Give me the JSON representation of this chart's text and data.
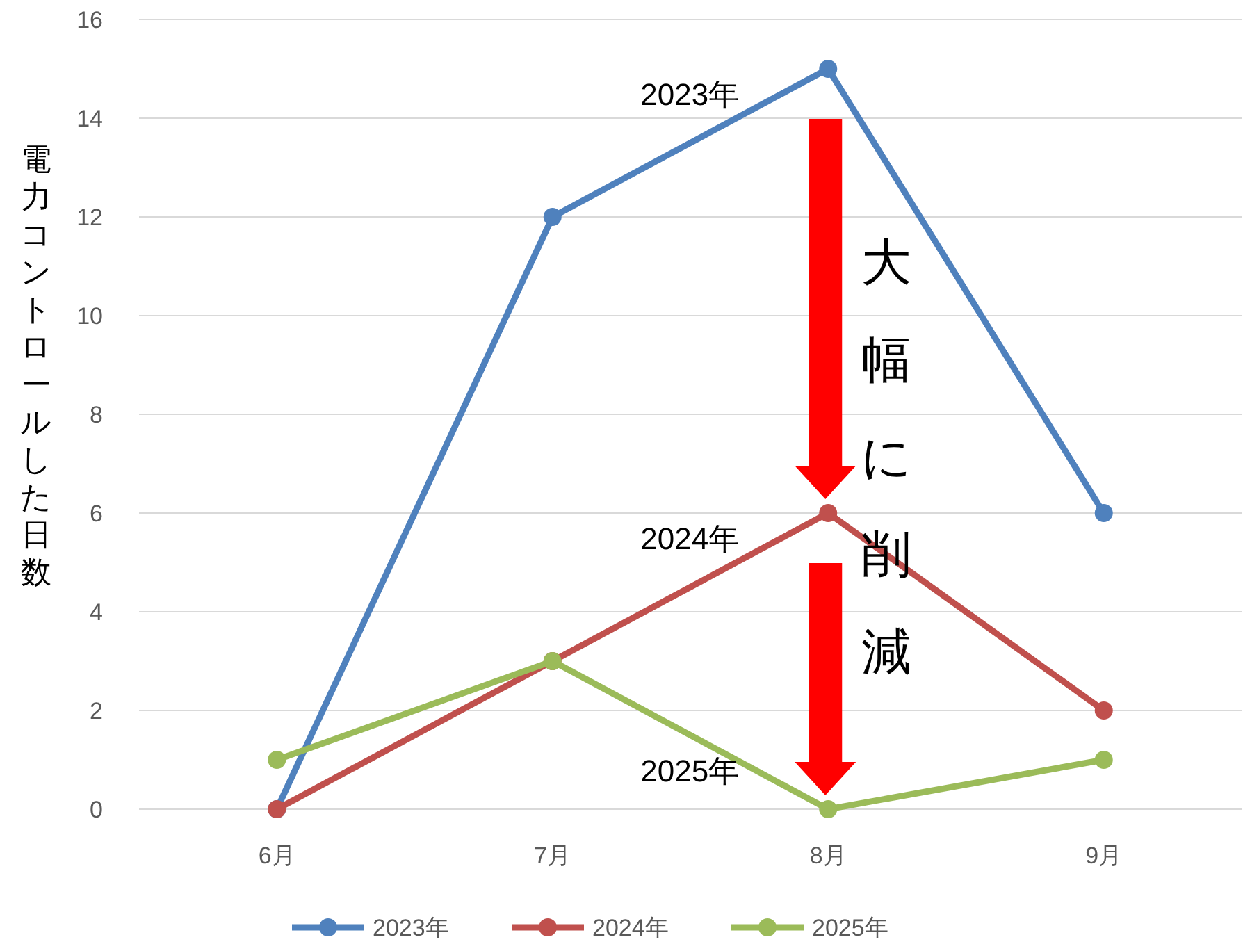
{
  "chart_data": {
    "type": "line",
    "ylabel": "電力コントロールした日数",
    "categories": [
      "6月",
      "7月",
      "8月",
      "9月"
    ],
    "series": [
      {
        "name": "2023年",
        "color": "#4f81bd",
        "values": [
          0,
          12,
          15,
          6
        ]
      },
      {
        "name": "2024年",
        "color": "#c0504d",
        "values": [
          0,
          3,
          6,
          2
        ]
      },
      {
        "name": "2025年",
        "color": "#9bbb59",
        "values": [
          1,
          3,
          0,
          1
        ]
      }
    ],
    "ylim": [
      0,
      16
    ],
    "yticks": [
      0,
      2,
      4,
      6,
      8,
      10,
      12,
      14,
      16
    ],
    "grid": "y",
    "legend": "bottom",
    "marker": "circle",
    "line_style": "solid",
    "annotations": [
      {
        "text": "2023年",
        "x": "8月",
        "y": 15
      },
      {
        "text": "2024年",
        "x": "8月",
        "y": 6
      },
      {
        "text": "2025年",
        "x": "8月",
        "y": 0
      },
      {
        "text": "大幅に削減",
        "x": "8月",
        "y": 6
      }
    ]
  }
}
